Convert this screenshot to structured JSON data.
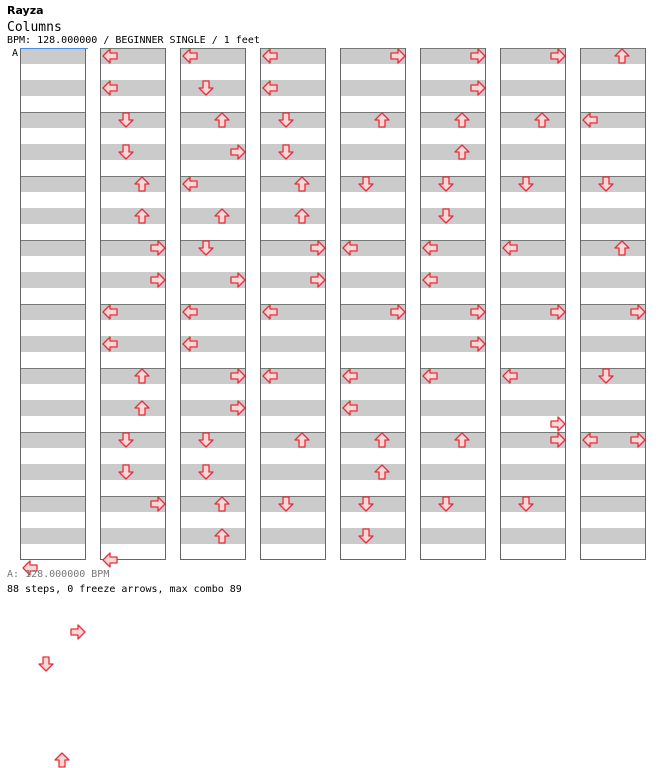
{
  "header": {
    "title": "Rayza",
    "subtitle": "Columns",
    "meta": "BPM: 128.000000 / BEGINNER SINGLE / 1 feet"
  },
  "bpm_marker": "A",
  "footer": {
    "bpm_line": "A: 128.000000 BPM",
    "stats": "88 steps, 0 freeze arrows, max combo 89"
  },
  "colors": {
    "band": "#cbcbcb",
    "arrow_fill": "#ffd6d6",
    "arrow_stroke": "#e0303a",
    "marker_line": "#4a8de0"
  },
  "lane_order": [
    "left",
    "down",
    "up",
    "right"
  ],
  "columns": [
    {
      "notes": [
        {
          "beat": 32.0,
          "lanes": [
            "left"
          ]
        },
        {
          "beat": 36.0,
          "lanes": [
            "right"
          ]
        },
        {
          "beat": 38.0,
          "lanes": [
            "down"
          ]
        },
        {
          "beat": 44.0,
          "lanes": [
            "up"
          ]
        }
      ]
    },
    {
      "notes": [
        {
          "beat": 0.0,
          "lanes": [
            "left"
          ]
        },
        {
          "beat": 2.0,
          "lanes": [
            "left"
          ]
        },
        {
          "beat": 4.0,
          "lanes": [
            "down"
          ]
        },
        {
          "beat": 6.0,
          "lanes": [
            "down"
          ]
        },
        {
          "beat": 8.0,
          "lanes": [
            "up"
          ]
        },
        {
          "beat": 10.0,
          "lanes": [
            "up"
          ]
        },
        {
          "beat": 12.0,
          "lanes": [
            "right"
          ]
        },
        {
          "beat": 14.0,
          "lanes": [
            "right"
          ]
        },
        {
          "beat": 16.0,
          "lanes": [
            "left"
          ]
        },
        {
          "beat": 18.0,
          "lanes": [
            "left"
          ]
        },
        {
          "beat": 20.0,
          "lanes": [
            "up"
          ]
        },
        {
          "beat": 22.0,
          "lanes": [
            "up"
          ]
        },
        {
          "beat": 24.0,
          "lanes": [
            "down"
          ]
        },
        {
          "beat": 26.0,
          "lanes": [
            "down"
          ]
        },
        {
          "beat": 28.0,
          "lanes": [
            "right"
          ]
        },
        {
          "beat": 31.5,
          "lanes": [
            "left"
          ]
        }
      ]
    },
    {
      "notes": [
        {
          "beat": 0.0,
          "lanes": [
            "left"
          ]
        },
        {
          "beat": 2.0,
          "lanes": [
            "down"
          ]
        },
        {
          "beat": 4.0,
          "lanes": [
            "up"
          ]
        },
        {
          "beat": 6.0,
          "lanes": [
            "right"
          ]
        },
        {
          "beat": 8.0,
          "lanes": [
            "left"
          ]
        },
        {
          "beat": 10.0,
          "lanes": [
            "up"
          ]
        },
        {
          "beat": 12.0,
          "lanes": [
            "down"
          ]
        },
        {
          "beat": 14.0,
          "lanes": [
            "right"
          ]
        },
        {
          "beat": 16.0,
          "lanes": [
            "left"
          ]
        },
        {
          "beat": 18.0,
          "lanes": [
            "left"
          ]
        },
        {
          "beat": 20.0,
          "lanes": [
            "right"
          ]
        },
        {
          "beat": 22.0,
          "lanes": [
            "right"
          ]
        },
        {
          "beat": 24.0,
          "lanes": [
            "down"
          ]
        },
        {
          "beat": 26.0,
          "lanes": [
            "down"
          ]
        },
        {
          "beat": 28.0,
          "lanes": [
            "up"
          ]
        },
        {
          "beat": 30.0,
          "lanes": [
            "up"
          ]
        }
      ]
    },
    {
      "notes": [
        {
          "beat": 0.0,
          "lanes": [
            "left"
          ]
        },
        {
          "beat": 2.0,
          "lanes": [
            "left"
          ]
        },
        {
          "beat": 4.0,
          "lanes": [
            "down"
          ]
        },
        {
          "beat": 6.0,
          "lanes": [
            "down"
          ]
        },
        {
          "beat": 8.0,
          "lanes": [
            "up"
          ]
        },
        {
          "beat": 10.0,
          "lanes": [
            "up"
          ]
        },
        {
          "beat": 12.0,
          "lanes": [
            "right"
          ]
        },
        {
          "beat": 14.0,
          "lanes": [
            "right"
          ]
        },
        {
          "beat": 16.0,
          "lanes": [
            "left"
          ]
        },
        {
          "beat": 20.0,
          "lanes": [
            "left"
          ]
        },
        {
          "beat": 24.0,
          "lanes": [
            "up"
          ]
        },
        {
          "beat": 28.0,
          "lanes": [
            "down"
          ]
        }
      ]
    },
    {
      "notes": [
        {
          "beat": 0.0,
          "lanes": [
            "right"
          ]
        },
        {
          "beat": 4.0,
          "lanes": [
            "up"
          ]
        },
        {
          "beat": 8.0,
          "lanes": [
            "down"
          ]
        },
        {
          "beat": 12.0,
          "lanes": [
            "left"
          ]
        },
        {
          "beat": 16.0,
          "lanes": [
            "right"
          ]
        },
        {
          "beat": 20.0,
          "lanes": [
            "left"
          ]
        },
        {
          "beat": 22.0,
          "lanes": [
            "left"
          ]
        },
        {
          "beat": 24.0,
          "lanes": [
            "up"
          ]
        },
        {
          "beat": 26.0,
          "lanes": [
            "up"
          ]
        },
        {
          "beat": 28.0,
          "lanes": [
            "down"
          ]
        },
        {
          "beat": 30.0,
          "lanes": [
            "down"
          ]
        }
      ]
    },
    {
      "notes": [
        {
          "beat": 0.0,
          "lanes": [
            "right"
          ]
        },
        {
          "beat": 2.0,
          "lanes": [
            "right"
          ]
        },
        {
          "beat": 4.0,
          "lanes": [
            "up"
          ]
        },
        {
          "beat": 6.0,
          "lanes": [
            "up"
          ]
        },
        {
          "beat": 8.0,
          "lanes": [
            "down"
          ]
        },
        {
          "beat": 10.0,
          "lanes": [
            "down"
          ]
        },
        {
          "beat": 12.0,
          "lanes": [
            "left"
          ]
        },
        {
          "beat": 14.0,
          "lanes": [
            "left"
          ]
        },
        {
          "beat": 16.0,
          "lanes": [
            "right"
          ]
        },
        {
          "beat": 18.0,
          "lanes": [
            "right"
          ]
        },
        {
          "beat": 20.0,
          "lanes": [
            "left"
          ]
        },
        {
          "beat": 24.0,
          "lanes": [
            "up"
          ]
        },
        {
          "beat": 28.0,
          "lanes": [
            "down"
          ]
        }
      ]
    },
    {
      "notes": [
        {
          "beat": 0.0,
          "lanes": [
            "right"
          ]
        },
        {
          "beat": 4.0,
          "lanes": [
            "up"
          ]
        },
        {
          "beat": 8.0,
          "lanes": [
            "down"
          ]
        },
        {
          "beat": 12.0,
          "lanes": [
            "left"
          ]
        },
        {
          "beat": 16.0,
          "lanes": [
            "right"
          ]
        },
        {
          "beat": 20.0,
          "lanes": [
            "left"
          ]
        },
        {
          "beat": 23.0,
          "lanes": [
            "right"
          ]
        },
        {
          "beat": 24.0,
          "lanes": [
            "right"
          ]
        },
        {
          "beat": 28.0,
          "lanes": [
            "down"
          ]
        }
      ]
    },
    {
      "notes": [
        {
          "beat": 0.0,
          "lanes": [
            "up"
          ]
        },
        {
          "beat": 4.0,
          "lanes": [
            "left"
          ]
        },
        {
          "beat": 8.0,
          "lanes": [
            "down"
          ]
        },
        {
          "beat": 12.0,
          "lanes": [
            "up"
          ]
        },
        {
          "beat": 16.0,
          "lanes": [
            "right"
          ]
        },
        {
          "beat": 20.0,
          "lanes": [
            "down"
          ]
        },
        {
          "beat": 24.0,
          "lanes": [
            "left",
            "right"
          ]
        }
      ]
    }
  ]
}
